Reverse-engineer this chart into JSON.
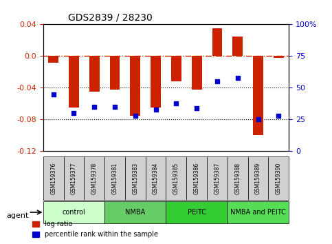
{
  "title": "GDS2839 / 28230",
  "samples": [
    "GSM159376",
    "GSM159377",
    "GSM159378",
    "GSM159381",
    "GSM159383",
    "GSM159384",
    "GSM159385",
    "GSM159386",
    "GSM159387",
    "GSM159388",
    "GSM159389",
    "GSM159390"
  ],
  "log_ratio": [
    -0.008,
    -0.065,
    -0.045,
    -0.042,
    -0.075,
    -0.065,
    -0.032,
    -0.042,
    0.035,
    0.025,
    -0.1,
    -0.002
  ],
  "percentile_rank": [
    45,
    30,
    35,
    35,
    28,
    33,
    38,
    34,
    55,
    58,
    25,
    28
  ],
  "groups": [
    {
      "label": "control",
      "start": 0,
      "end": 3,
      "color": "#ccffcc"
    },
    {
      "label": "NMBA",
      "start": 3,
      "end": 6,
      "color": "#66cc66"
    },
    {
      "label": "PEITC",
      "start": 6,
      "end": 9,
      "color": "#33cc33"
    },
    {
      "label": "NMBA and PEITC",
      "start": 9,
      "end": 12,
      "color": "#55dd55"
    }
  ],
  "bar_color": "#cc2200",
  "dot_color": "#0000cc",
  "ylim_left": [
    -0.12,
    0.04
  ],
  "ylim_right": [
    0,
    100
  ],
  "ylabel_left_ticks": [
    0.04,
    0.0,
    -0.04,
    -0.08,
    -0.12
  ],
  "ylabel_right_ticks": [
    100,
    75,
    50,
    25,
    0
  ],
  "hline_zero_color": "#cc2200",
  "hline_zero_style": "-.",
  "hline_dotted_color": "black",
  "background_color": "#ffffff",
  "agent_label": "agent",
  "legend_log_ratio": "log ratio",
  "legend_percentile": "percentile rank within the sample",
  "bar_width": 0.5
}
